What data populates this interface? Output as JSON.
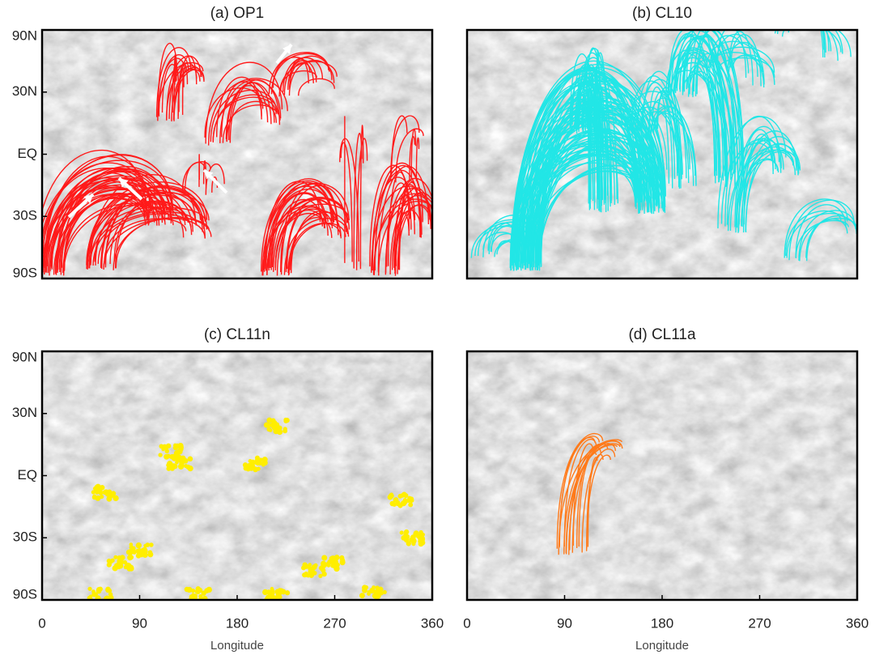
{
  "chart_data": [
    {
      "type": "map",
      "title": "(a) OP1",
      "line_color": "#ff1a1a",
      "xlim": [
        0,
        360
      ],
      "ylim": [
        -90,
        90
      ],
      "yscale": "sine",
      "yticks": [
        {
          "value": 90,
          "label": "90N"
        },
        {
          "value": 30,
          "label": "30N"
        },
        {
          "value": 0,
          "label": "EQ"
        },
        {
          "value": -30,
          "label": "30S"
        },
        {
          "value": -90,
          "label": "90S"
        }
      ]
    },
    {
      "type": "map",
      "title": "(b) CL10",
      "line_color": "#22e6e6",
      "xlim": [
        0,
        360
      ],
      "ylim": [
        -90,
        90
      ],
      "yscale": "sine"
    },
    {
      "type": "map",
      "title": "(c) CL11n",
      "line_color": "#ffee00",
      "xlim": [
        0,
        360
      ],
      "ylim": [
        -90,
        90
      ],
      "yscale": "sine",
      "yticks": [
        {
          "value": 90,
          "label": "90N"
        },
        {
          "value": 30,
          "label": "30N"
        },
        {
          "value": 0,
          "label": "EQ"
        },
        {
          "value": -30,
          "label": "30S"
        },
        {
          "value": -90,
          "label": "90S"
        }
      ],
      "xticks": [
        0,
        90,
        180,
        270,
        360
      ],
      "xlabel": "Longitude"
    },
    {
      "type": "map",
      "title": "(d) CL11a",
      "line_color": "#ff7a1a",
      "xlim": [
        0,
        360
      ],
      "ylim": [
        -90,
        90
      ],
      "yscale": "sine",
      "xticks": [
        0,
        90,
        180,
        270,
        360
      ],
      "xlabel": "Longitude"
    }
  ]
}
